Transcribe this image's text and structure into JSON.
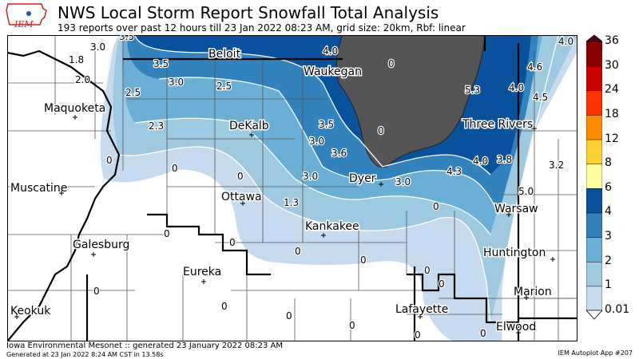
{
  "header": {
    "title": "NWS Local Storm Report Snowfall Total Analysis",
    "subtitle": "193 reports over past 12 hours till 23 Jan 2022 08:23 AM, grid size: 20km, Rbf: linear",
    "logo_text": "IEM"
  },
  "footer": {
    "line1": "Iowa Environmental Mesonet :: generated 23 January 2022 08:23 AM",
    "line2": "Generated at 23 Jan 2022 8:24 AM CST in 13.58s",
    "app": "IEM Autoplot App #207"
  },
  "colorbar": {
    "levels": [
      "0.01",
      "1",
      "2",
      "3",
      "4",
      "6",
      "8",
      "12",
      "18",
      "24",
      "30",
      "36"
    ],
    "colors": [
      "#c6dbef",
      "#9ecae1",
      "#6baed6",
      "#3182bd",
      "#08519c",
      "#ffffa0",
      "#ffd033",
      "#ff8c00",
      "#ff3300",
      "#cc0000",
      "#8b0000",
      "#4d0026"
    ]
  },
  "cities": [
    {
      "name": "Beloit"
    },
    {
      "name": "Waukegan"
    },
    {
      "name": "Maquoketa"
    },
    {
      "name": "DeKalb"
    },
    {
      "name": "Three Rivers"
    },
    {
      "name": "Muscatine"
    },
    {
      "name": "Ottawa"
    },
    {
      "name": "Dyer"
    },
    {
      "name": "Warsaw"
    },
    {
      "name": "Kankakee"
    },
    {
      "name": "Galesburg"
    },
    {
      "name": "Huntington"
    },
    {
      "name": "Eureka"
    },
    {
      "name": "Marion"
    },
    {
      "name": "Keokuk"
    },
    {
      "name": "Lafayette"
    },
    {
      "name": "Elwood"
    }
  ],
  "report_values": [
    {
      "value": "3.0"
    },
    {
      "value": "3.5"
    },
    {
      "value": "1.8"
    },
    {
      "value": "3.5"
    },
    {
      "value": "2.0"
    },
    {
      "value": "3.0"
    },
    {
      "value": "2.5"
    },
    {
      "value": "2.5"
    },
    {
      "value": "2.3"
    },
    {
      "value": "4.0"
    },
    {
      "value": "0"
    },
    {
      "value": "0"
    },
    {
      "value": "4.0"
    },
    {
      "value": "4.6"
    },
    {
      "value": "5.3"
    },
    {
      "value": "4.0"
    },
    {
      "value": "4.5"
    },
    {
      "value": "3.5"
    },
    {
      "value": "3.0"
    },
    {
      "value": "3.6"
    },
    {
      "value": "0"
    },
    {
      "value": "0"
    },
    {
      "value": "0"
    },
    {
      "value": "3.0"
    },
    {
      "value": "3.0"
    },
    {
      "value": "4.0"
    },
    {
      "value": "3.8"
    },
    {
      "value": "4.3"
    },
    {
      "value": "3.2"
    },
    {
      "value": "5.0"
    },
    {
      "value": "1.3"
    },
    {
      "value": "0"
    },
    {
      "value": "0"
    },
    {
      "value": "0"
    },
    {
      "value": "0"
    },
    {
      "value": "0"
    },
    {
      "value": "0"
    },
    {
      "value": "0"
    },
    {
      "value": "0"
    },
    {
      "value": "0"
    },
    {
      "value": "0"
    },
    {
      "value": "0"
    },
    {
      "value": "0"
    },
    {
      "value": "0"
    }
  ]
}
